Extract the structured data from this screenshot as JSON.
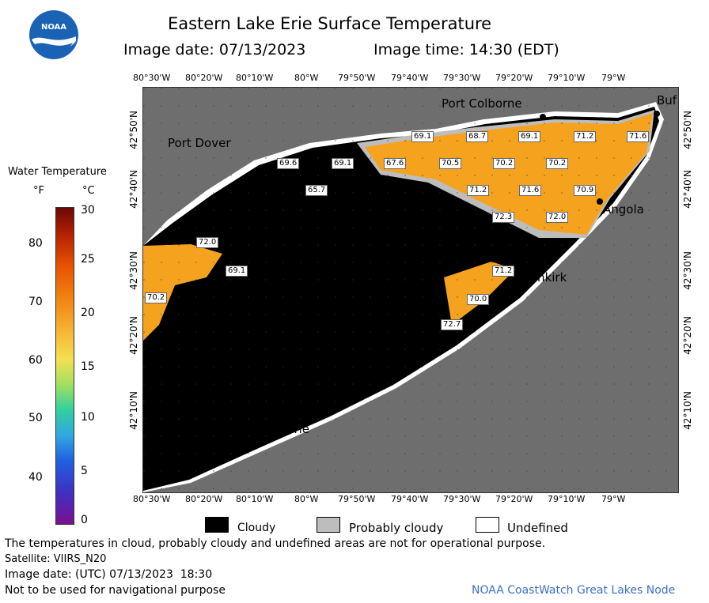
{
  "header": {
    "title": "Eastern Lake Erie Surface Temperature",
    "image_date": "Image date: 07/13/2023",
    "image_time": "Image time: 14:30 (EDT)",
    "logo_text": "NOAA"
  },
  "colorbar": {
    "title": "Water Temperature",
    "unit_f": "°F",
    "unit_c": "°C",
    "f_ticks": [
      "80",
      "70",
      "60",
      "50",
      "40"
    ],
    "c_ticks": [
      "30",
      "25",
      "20",
      "15",
      "10",
      "5",
      "0"
    ]
  },
  "map": {
    "lon_ticks": [
      "80°30'W",
      "80°20'W",
      "80°10'W",
      "80°W",
      "79°50'W",
      "79°40'W",
      "79°30'W",
      "79°20'W",
      "79°10'W",
      "79°W"
    ],
    "lat_ticks": [
      "42°50'N",
      "42°40'N",
      "42°30'N",
      "42°20'N",
      "42°10'N"
    ],
    "cities": {
      "port_colborne": "Port Colborne",
      "port_dover": "Port Dover",
      "buffalo": "Buf",
      "angola": "Angola",
      "dunkirk": "Dunkirk",
      "erie": "Erie"
    },
    "temps": [
      "69.1",
      "68.7",
      "69.1",
      "71.2",
      "71.6",
      "69.6",
      "69.1",
      "67.6",
      "70.5",
      "70.2",
      "70.2",
      "65.7",
      "71.2",
      "71.6",
      "70.9",
      "72.3",
      "72.0",
      "72.0",
      "69.1",
      "71.2",
      "70.2",
      "70.0",
      "72.7"
    ],
    "colors": {
      "land": "#6e6e6e",
      "cloud": "#000000",
      "probably_cloudy": "#bdbdbd",
      "water_warm": "#f5a21e",
      "undefined": "#ffffff"
    }
  },
  "legend": {
    "cloudy": "Cloudy",
    "probably_cloudy": "Probably cloudy",
    "undefined": "Undefined"
  },
  "footer": {
    "disclaimer": "The temperatures in cloud, probably cloudy and undefined areas are not for operational purpose.",
    "satellite": "Satellite: VIIRS_N20",
    "utc_date": "Image date: (UTC) 07/13/2023  18:30",
    "nav_warning": "Not to be used for navigational purpose",
    "credit": "NOAA CoastWatch Great Lakes Node"
  }
}
